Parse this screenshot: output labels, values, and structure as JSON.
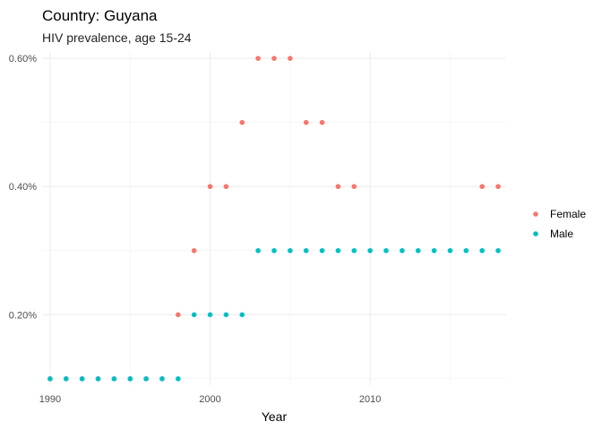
{
  "chart_data": {
    "type": "scatter",
    "title": "Country: Guyana",
    "subtitle": "HIV prevalence, age 15-24",
    "xlabel": "Year",
    "ylabel": "",
    "xlim": [
      1989.5,
      2018.5
    ],
    "ylim": [
      0.09,
      0.61
    ],
    "x_ticks": [
      1990,
      2000,
      2010
    ],
    "x_minor_ticks": [
      1995,
      2005,
      2015
    ],
    "y_ticks": [
      0.2,
      0.4,
      0.6
    ],
    "y_tick_labels": [
      "0.20%",
      "0.40%",
      "0.60%"
    ],
    "y_minor_ticks": [
      0.1,
      0.3,
      0.5
    ],
    "grid": true,
    "legend_position": "right",
    "series": [
      {
        "name": "Female",
        "color": "#F8766D",
        "points": [
          {
            "x": 1990,
            "y": 0.1
          },
          {
            "x": 1991,
            "y": 0.1
          },
          {
            "x": 1992,
            "y": 0.1
          },
          {
            "x": 1993,
            "y": 0.1
          },
          {
            "x": 1994,
            "y": 0.1
          },
          {
            "x": 1995,
            "y": 0.1
          },
          {
            "x": 1996,
            "y": 0.1
          },
          {
            "x": 1997,
            "y": 0.1
          },
          {
            "x": 1998,
            "y": 0.2
          },
          {
            "x": 1999,
            "y": 0.3
          },
          {
            "x": 2000,
            "y": 0.4
          },
          {
            "x": 2001,
            "y": 0.4
          },
          {
            "x": 2002,
            "y": 0.5
          },
          {
            "x": 2003,
            "y": 0.6
          },
          {
            "x": 2004,
            "y": 0.6
          },
          {
            "x": 2005,
            "y": 0.6
          },
          {
            "x": 2006,
            "y": 0.5
          },
          {
            "x": 2007,
            "y": 0.5
          },
          {
            "x": 2008,
            "y": 0.4
          },
          {
            "x": 2009,
            "y": 0.4
          },
          {
            "x": 2017,
            "y": 0.4
          },
          {
            "x": 2018,
            "y": 0.4
          }
        ]
      },
      {
        "name": "Male",
        "color": "#00BFC4",
        "points": [
          {
            "x": 1990,
            "y": 0.1
          },
          {
            "x": 1991,
            "y": 0.1
          },
          {
            "x": 1992,
            "y": 0.1
          },
          {
            "x": 1993,
            "y": 0.1
          },
          {
            "x": 1994,
            "y": 0.1
          },
          {
            "x": 1995,
            "y": 0.1
          },
          {
            "x": 1996,
            "y": 0.1
          },
          {
            "x": 1997,
            "y": 0.1
          },
          {
            "x": 1998,
            "y": 0.1
          },
          {
            "x": 1999,
            "y": 0.2
          },
          {
            "x": 2000,
            "y": 0.2
          },
          {
            "x": 2001,
            "y": 0.2
          },
          {
            "x": 2002,
            "y": 0.2
          },
          {
            "x": 2003,
            "y": 0.3
          },
          {
            "x": 2004,
            "y": 0.3
          },
          {
            "x": 2005,
            "y": 0.3
          },
          {
            "x": 2006,
            "y": 0.3
          },
          {
            "x": 2007,
            "y": 0.3
          },
          {
            "x": 2008,
            "y": 0.3
          },
          {
            "x": 2009,
            "y": 0.3
          },
          {
            "x": 2010,
            "y": 0.3
          },
          {
            "x": 2011,
            "y": 0.3
          },
          {
            "x": 2012,
            "y": 0.3
          },
          {
            "x": 2013,
            "y": 0.3
          },
          {
            "x": 2014,
            "y": 0.3
          },
          {
            "x": 2015,
            "y": 0.3
          },
          {
            "x": 2016,
            "y": 0.3
          },
          {
            "x": 2017,
            "y": 0.3
          },
          {
            "x": 2018,
            "y": 0.3
          }
        ]
      }
    ]
  }
}
